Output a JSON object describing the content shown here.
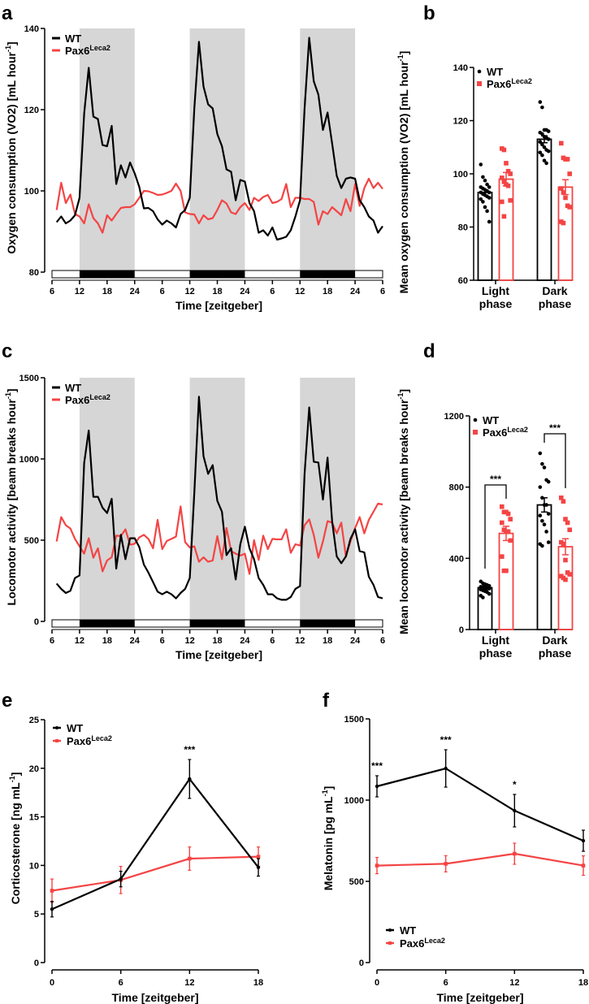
{
  "colors": {
    "wt": "#000000",
    "pax6": "#f44444",
    "dark_shade": "#d6d6d6"
  },
  "legend": {
    "wt": "WT",
    "pax6_main": "Pax6",
    "pax6_sup": "Leca2"
  },
  "chart_data": [
    {
      "panel": "a",
      "type": "line",
      "xlabel": "Time [zeitgeber]",
      "ylabel": {
        "main": "Oxygen consumption (VO2) [mL hour",
        "sup": "-1",
        "end": "]"
      },
      "ylim": [
        80,
        140
      ],
      "yticks": [
        "80",
        "100",
        "120",
        "140"
      ],
      "ytick_values": [
        80,
        100,
        120,
        140
      ],
      "xlim": [
        6,
        78
      ],
      "xtick_values": [
        6,
        12,
        18,
        24,
        30,
        36,
        42,
        48,
        54,
        60,
        66,
        72,
        78
      ],
      "xticks": [
        "6",
        "12",
        "18",
        "24",
        "6",
        "12",
        "18",
        "24",
        "6",
        "12",
        "18",
        "24",
        "6"
      ],
      "dark_periods": [
        [
          12,
          24
        ],
        [
          36,
          48
        ],
        [
          60,
          72
        ]
      ],
      "x_start": 7,
      "series": [
        {
          "name": "WT",
          "values": [
            92.3,
            93.7,
            92,
            92.7,
            94,
            98.3,
            119,
            130.3,
            118.3,
            117.7,
            111.3,
            111,
            116,
            101.7,
            106.3,
            103.3,
            107,
            104.3,
            101,
            95.7,
            95.8,
            95,
            93,
            91.7,
            92.7,
            92,
            91,
            94.3,
            95.3,
            98.3,
            120.3,
            136.7,
            125.7,
            121.3,
            120.3,
            114,
            111,
            105.3,
            104.7,
            97.7,
            102.7,
            102.3,
            97,
            95,
            89.7,
            90.3,
            89,
            91,
            88,
            88.3,
            88.7,
            90.3,
            93.7,
            97.7,
            120.3,
            137.7,
            127,
            123.7,
            115,
            119.3,
            111.7,
            103.7,
            100.7,
            103,
            103.3,
            103,
            97.7,
            96,
            93.7,
            92.7,
            89.7,
            91.3
          ]
        },
        {
          "name": "Pax6Leca2",
          "values": [
            95.3,
            102,
            97,
            99.1,
            94.3,
            93.7,
            92,
            96.7,
            93.3,
            92,
            89.7,
            94,
            92.7,
            94.3,
            95.8,
            96,
            96,
            96.7,
            98.3,
            100,
            99.9,
            99.5,
            99,
            99.1,
            99.5,
            100,
            101.8,
            100,
            94.7,
            94.3,
            94.2,
            92,
            94,
            93,
            93.3,
            95.3,
            97.7,
            96.9,
            94.7,
            94.3,
            96,
            97,
            95.3,
            98.3,
            97.5,
            98.5,
            99,
            97,
            97.3,
            98,
            101.7,
            96,
            98.3,
            98.3,
            98,
            98,
            97.3,
            91.7,
            95,
            94.3,
            96,
            95,
            94,
            98,
            95,
            101.7,
            96.3,
            100.7,
            103,
            100.7,
            102,
            100.5
          ]
        }
      ]
    },
    {
      "panel": "b",
      "type": "bar",
      "ylabel": {
        "main": "Mean oxygen consumption (VO2) [mL hour",
        "sup": "-1",
        "end": "]"
      },
      "ylim": [
        60,
        140
      ],
      "yticks": [
        "60",
        "80",
        "100",
        "120",
        "140"
      ],
      "ytick_values": [
        60,
        80,
        100,
        120,
        140
      ],
      "categories": [
        {
          "line1": "Light",
          "line2": "phase"
        },
        {
          "line1": "Dark",
          "line2": "phase"
        }
      ],
      "series": [
        {
          "name": "WT",
          "means": [
            93,
            113
          ],
          "sem": [
            1.0,
            1.3
          ],
          "points": [
            [
              103.5,
              98.8,
              97.5,
              96,
              95,
              95,
              94.5,
              94,
              93.5,
              93,
              93,
              92.5,
              92,
              91.5,
              91,
              90.5,
              89.5,
              87.5,
              86,
              82
            ],
            [
              127,
              125,
              116.5,
              116.5,
              116,
              115.5,
              115,
              114,
              113.5,
              113,
              112,
              111,
              110,
              109,
              108.5,
              108,
              107,
              105,
              104
            ]
          ]
        },
        {
          "name": "Pax6Leca2",
          "means": [
            98,
            95
          ],
          "sem": [
            2.5,
            2.8
          ],
          "points": [
            [
              109.5,
              109,
              104,
              101,
              100,
              98.5,
              97,
              96,
              95.5,
              90,
              89.5,
              84
            ],
            [
              111.5,
              106,
              105.5,
              105.5,
              100,
              94.5,
              93,
              91,
              88,
              87.5,
              82,
              81.5
            ]
          ]
        }
      ],
      "significance": [
        {
          "category": 1,
          "label": "***"
        }
      ]
    },
    {
      "panel": "c",
      "type": "line",
      "xlabel": "Time [zeitgeber]",
      "ylabel": {
        "main": "Locomotor activity [beam breaks hour",
        "sup": "-1",
        "end": "]"
      },
      "ylim": [
        0,
        1500
      ],
      "yticks": [
        "0",
        "500",
        "1000",
        "1500"
      ],
      "ytick_values": [
        0,
        500,
        1000,
        1500
      ],
      "xlim": [
        6,
        78
      ],
      "xtick_values": [
        6,
        12,
        18,
        24,
        30,
        36,
        42,
        48,
        54,
        60,
        66,
        72,
        78
      ],
      "xticks": [
        "6",
        "12",
        "18",
        "24",
        "6",
        "12",
        "18",
        "24",
        "6",
        "12",
        "18",
        "24",
        "6"
      ],
      "dark_periods": [
        [
          12,
          24
        ],
        [
          36,
          48
        ],
        [
          60,
          72
        ]
      ],
      "x_start": 7,
      "series": [
        {
          "name": "WT",
          "values": [
            233,
            200,
            175,
            188,
            267,
            283,
            975,
            1175,
            767,
            767,
            700,
            667,
            755,
            325,
            533,
            383,
            512,
            512,
            458,
            350,
            300,
            242,
            183,
            167,
            183,
            167,
            142,
            175,
            200,
            267,
            792,
            1383,
            1017,
            908,
            962,
            742,
            675,
            408,
            450,
            258,
            475,
            583,
            450,
            383,
            267,
            225,
            167,
            167,
            142,
            133,
            133,
            150,
            200,
            217,
            908,
            1317,
            983,
            978,
            750,
            1008,
            617,
            400,
            358,
            400,
            508,
            567,
            433,
            425,
            275,
            225,
            150,
            142
          ]
        },
        {
          "name": "Pax6Leca2",
          "values": [
            492,
            642,
            592,
            572,
            508,
            462,
            417,
            512,
            392,
            450,
            308,
            375,
            395,
            528,
            525,
            567,
            472,
            478,
            517,
            533,
            508,
            450,
            625,
            445,
            495,
            508,
            522,
            708,
            488,
            455,
            462,
            367,
            395,
            367,
            375,
            525,
            383,
            575,
            433,
            417,
            405,
            417,
            292,
            500,
            378,
            528,
            445,
            508,
            505,
            505,
            567,
            422,
            475,
            467,
            592,
            628,
            533,
            392,
            492,
            617,
            608,
            542,
            608,
            400,
            492,
            575,
            642,
            542,
            625,
            675,
            725,
            720
          ]
        }
      ]
    },
    {
      "panel": "d",
      "type": "bar",
      "ylabel": {
        "main": "Mean locomotor activity [beam breaks hour",
        "sup": "-1",
        "end": "]"
      },
      "ylim": [
        0,
        1200
      ],
      "yticks": [
        "0",
        "400",
        "800",
        "1200"
      ],
      "ytick_values": [
        0,
        400,
        800,
        1200
      ],
      "categories": [
        {
          "line1": "Light",
          "line2": "phase"
        },
        {
          "line1": "Dark",
          "line2": "phase"
        }
      ],
      "series": [
        {
          "name": "WT",
          "means": [
            235,
            700
          ],
          "sem": [
            10,
            40
          ],
          "points": [
            [
              270,
              260,
              255,
              250,
              245,
              240,
              240,
              235,
              230,
              230,
              225,
              220,
              215,
              210,
              200,
              190,
              180
            ],
            [
              990,
              930,
              910,
              840,
              830,
              800,
              740,
              700,
              700,
              650,
              640,
              610,
              590,
              550,
              490,
              480,
              470
            ]
          ]
        },
        {
          "name": "Pax6Leca2",
          "means": [
            540,
            465
          ],
          "sem": [
            40,
            45
          ],
          "points": [
            [
              690,
              660,
              660,
              650,
              620,
              600,
              560,
              550,
              550,
              500,
              410,
              330,
              330
            ],
            [
              740,
              720,
              620,
              600,
              560,
              490,
              480,
              390,
              320,
              310,
              300,
              290,
              280
            ]
          ]
        }
      ],
      "significance": [
        {
          "category": 0,
          "label": "***"
        },
        {
          "category": 1,
          "label": "***"
        }
      ]
    },
    {
      "panel": "e",
      "type": "line",
      "xlabel": "Time [zeitgeber]",
      "ylabel": {
        "main": "Corticosterone [ng mL",
        "sup": "-1",
        "end": "]"
      },
      "ylim": [
        0,
        25
      ],
      "yticks": [
        "0",
        "5",
        "10",
        "15",
        "20",
        "25"
      ],
      "ytick_values": [
        0,
        5,
        10,
        15,
        20,
        25
      ],
      "xlim": [
        0,
        18
      ],
      "x": [
        0,
        6,
        12,
        18
      ],
      "xticks": [
        "0",
        "6",
        "12",
        "18"
      ],
      "series": [
        {
          "name": "WT",
          "values": [
            5.5,
            8.6,
            18.9,
            9.8
          ],
          "sem": [
            0.8,
            0.8,
            2.0,
            0.9
          ]
        },
        {
          "name": "Pax6Leca2",
          "values": [
            7.4,
            8.5,
            10.7,
            10.9
          ],
          "sem": [
            1.2,
            1.4,
            1.2,
            1.0
          ]
        }
      ],
      "annotations": [
        {
          "x": 12,
          "label": "***"
        }
      ]
    },
    {
      "panel": "f",
      "type": "line",
      "xlabel": "Time [zeitgeber]",
      "ylabel": {
        "main": "Melatonin [pg mL",
        "sup": "-1",
        "end": "]"
      },
      "ylim": [
        0,
        1500
      ],
      "yticks": [
        "0",
        "500",
        "1000",
        "1500"
      ],
      "ytick_values": [
        0,
        500,
        1000,
        1500
      ],
      "xlim": [
        0,
        18
      ],
      "x": [
        0,
        6,
        12,
        18
      ],
      "xticks": [
        "0",
        "6",
        "12",
        "18"
      ],
      "series": [
        {
          "name": "WT",
          "values": [
            1085,
            1195,
            935,
            750
          ],
          "sem": [
            65,
            115,
            100,
            65
          ]
        },
        {
          "name": "Pax6Leca2",
          "values": [
            597,
            608,
            670,
            597
          ],
          "sem": [
            50,
            50,
            65,
            60
          ]
        }
      ],
      "annotations": [
        {
          "x": 0,
          "label": "***"
        },
        {
          "x": 6,
          "label": "***"
        },
        {
          "x": 12,
          "label": "*"
        }
      ]
    }
  ]
}
